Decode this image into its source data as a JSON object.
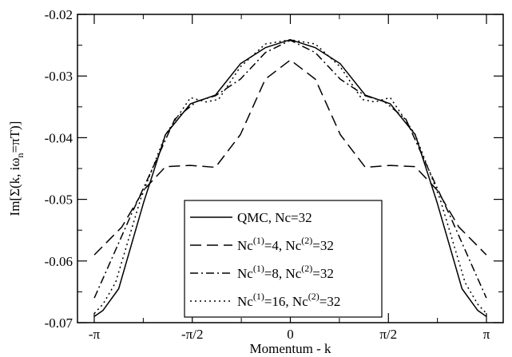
{
  "chart_data": {
    "type": "line",
    "xlabel": "Momentum - k",
    "ylabel_parts": {
      "pre": "Im[Σ(k, iω",
      "sub": "n",
      "post": "=πT)]"
    },
    "xlim": [
      -3.41,
      3.41
    ],
    "ylim": [
      -0.07,
      -0.02
    ],
    "x_ticks": [
      {
        "value": -3.1416,
        "label": "-π"
      },
      {
        "value": -1.5708,
        "label": "-π/2"
      },
      {
        "value": 0,
        "label": "0"
      },
      {
        "value": 1.5708,
        "label": "π/2"
      },
      {
        "value": 3.1416,
        "label": "π"
      }
    ],
    "y_ticks": [
      {
        "value": -0.07,
        "label": "-0.07"
      },
      {
        "value": -0.06,
        "label": "-0.06"
      },
      {
        "value": -0.05,
        "label": "-0.05"
      },
      {
        "value": -0.04,
        "label": "-0.04"
      },
      {
        "value": -0.03,
        "label": "-0.03"
      },
      {
        "value": -0.02,
        "label": "-0.02"
      }
    ],
    "grid": false,
    "legend_position": "lower-center",
    "series": [
      {
        "legend": {
          "parts": [
            {
              "t": "QMC, Nc=32"
            }
          ]
        },
        "dash": "none",
        "x": [
          -3.14,
          -3.0,
          -2.75,
          -2.35,
          -2.0,
          -1.6,
          -1.2,
          -0.8,
          -0.4,
          0,
          0.4,
          0.8,
          1.2,
          1.6,
          2.0,
          2.35,
          2.75,
          3.0,
          3.14
        ],
        "y": [
          -0.069,
          -0.068,
          -0.0645,
          -0.0505,
          -0.0395,
          -0.0345,
          -0.0331,
          -0.028,
          -0.0254,
          -0.0241,
          -0.0254,
          -0.028,
          -0.0331,
          -0.0345,
          -0.0395,
          -0.0505,
          -0.0645,
          -0.068,
          -0.069
        ]
      },
      {
        "legend": {
          "parts": [
            {
              "t": "Nc"
            },
            {
              "sup": "(1)"
            },
            {
              "t": "=4, Nc"
            },
            {
              "sup": "(2)"
            },
            {
              "t": "=32"
            }
          ]
        },
        "dash": "14,7",
        "x": [
          -3.14,
          -2.7,
          -2.35,
          -2.0,
          -1.6,
          -1.2,
          -0.8,
          -0.4,
          0,
          0.4,
          0.8,
          1.2,
          1.6,
          2.0,
          2.35,
          2.7,
          3.14
        ],
        "y": [
          -0.059,
          -0.0545,
          -0.0485,
          -0.0447,
          -0.0445,
          -0.0448,
          -0.0395,
          -0.0305,
          -0.0274,
          -0.0305,
          -0.0395,
          -0.0448,
          -0.0445,
          -0.0447,
          -0.0485,
          -0.0545,
          -0.059
        ]
      },
      {
        "legend": {
          "parts": [
            {
              "t": "Nc"
            },
            {
              "sup": "(1)"
            },
            {
              "t": "=8, Nc"
            },
            {
              "sup": "(2)"
            },
            {
              "t": "=32"
            }
          ]
        },
        "dash": "10,4,2,4",
        "x": [
          -3.14,
          -2.9,
          -2.55,
          -2.2,
          -1.85,
          -1.5,
          -1.2,
          -0.8,
          -0.4,
          0,
          0.4,
          0.8,
          1.2,
          1.5,
          1.85,
          2.2,
          2.55,
          2.9,
          3.14
        ],
        "y": [
          -0.066,
          -0.0605,
          -0.0525,
          -0.0448,
          -0.037,
          -0.0341,
          -0.0332,
          -0.0305,
          -0.0262,
          -0.0242,
          -0.0262,
          -0.0305,
          -0.0332,
          -0.0341,
          -0.037,
          -0.0448,
          -0.0525,
          -0.0605,
          -0.066
        ]
      },
      {
        "legend": {
          "parts": [
            {
              "t": "Nc"
            },
            {
              "sup": "(1)"
            },
            {
              "t": "=16, Nc"
            },
            {
              "sup": "(2)"
            },
            {
              "t": "=32"
            }
          ]
        },
        "dash": "2,4",
        "x": [
          -3.14,
          -3.0,
          -2.8,
          -2.4,
          -2.0,
          -1.6,
          -1.35,
          -1.15,
          -0.8,
          -0.4,
          0,
          0.4,
          0.8,
          1.15,
          1.35,
          1.6,
          2.0,
          2.4,
          2.8,
          3.0,
          3.14
        ],
        "y": [
          -0.0685,
          -0.067,
          -0.0635,
          -0.05,
          -0.0395,
          -0.0335,
          -0.0342,
          -0.0338,
          -0.0285,
          -0.0248,
          -0.0241,
          -0.0248,
          -0.0285,
          -0.0338,
          -0.0342,
          -0.0335,
          -0.0395,
          -0.05,
          -0.0635,
          -0.067,
          -0.0685
        ]
      }
    ]
  }
}
